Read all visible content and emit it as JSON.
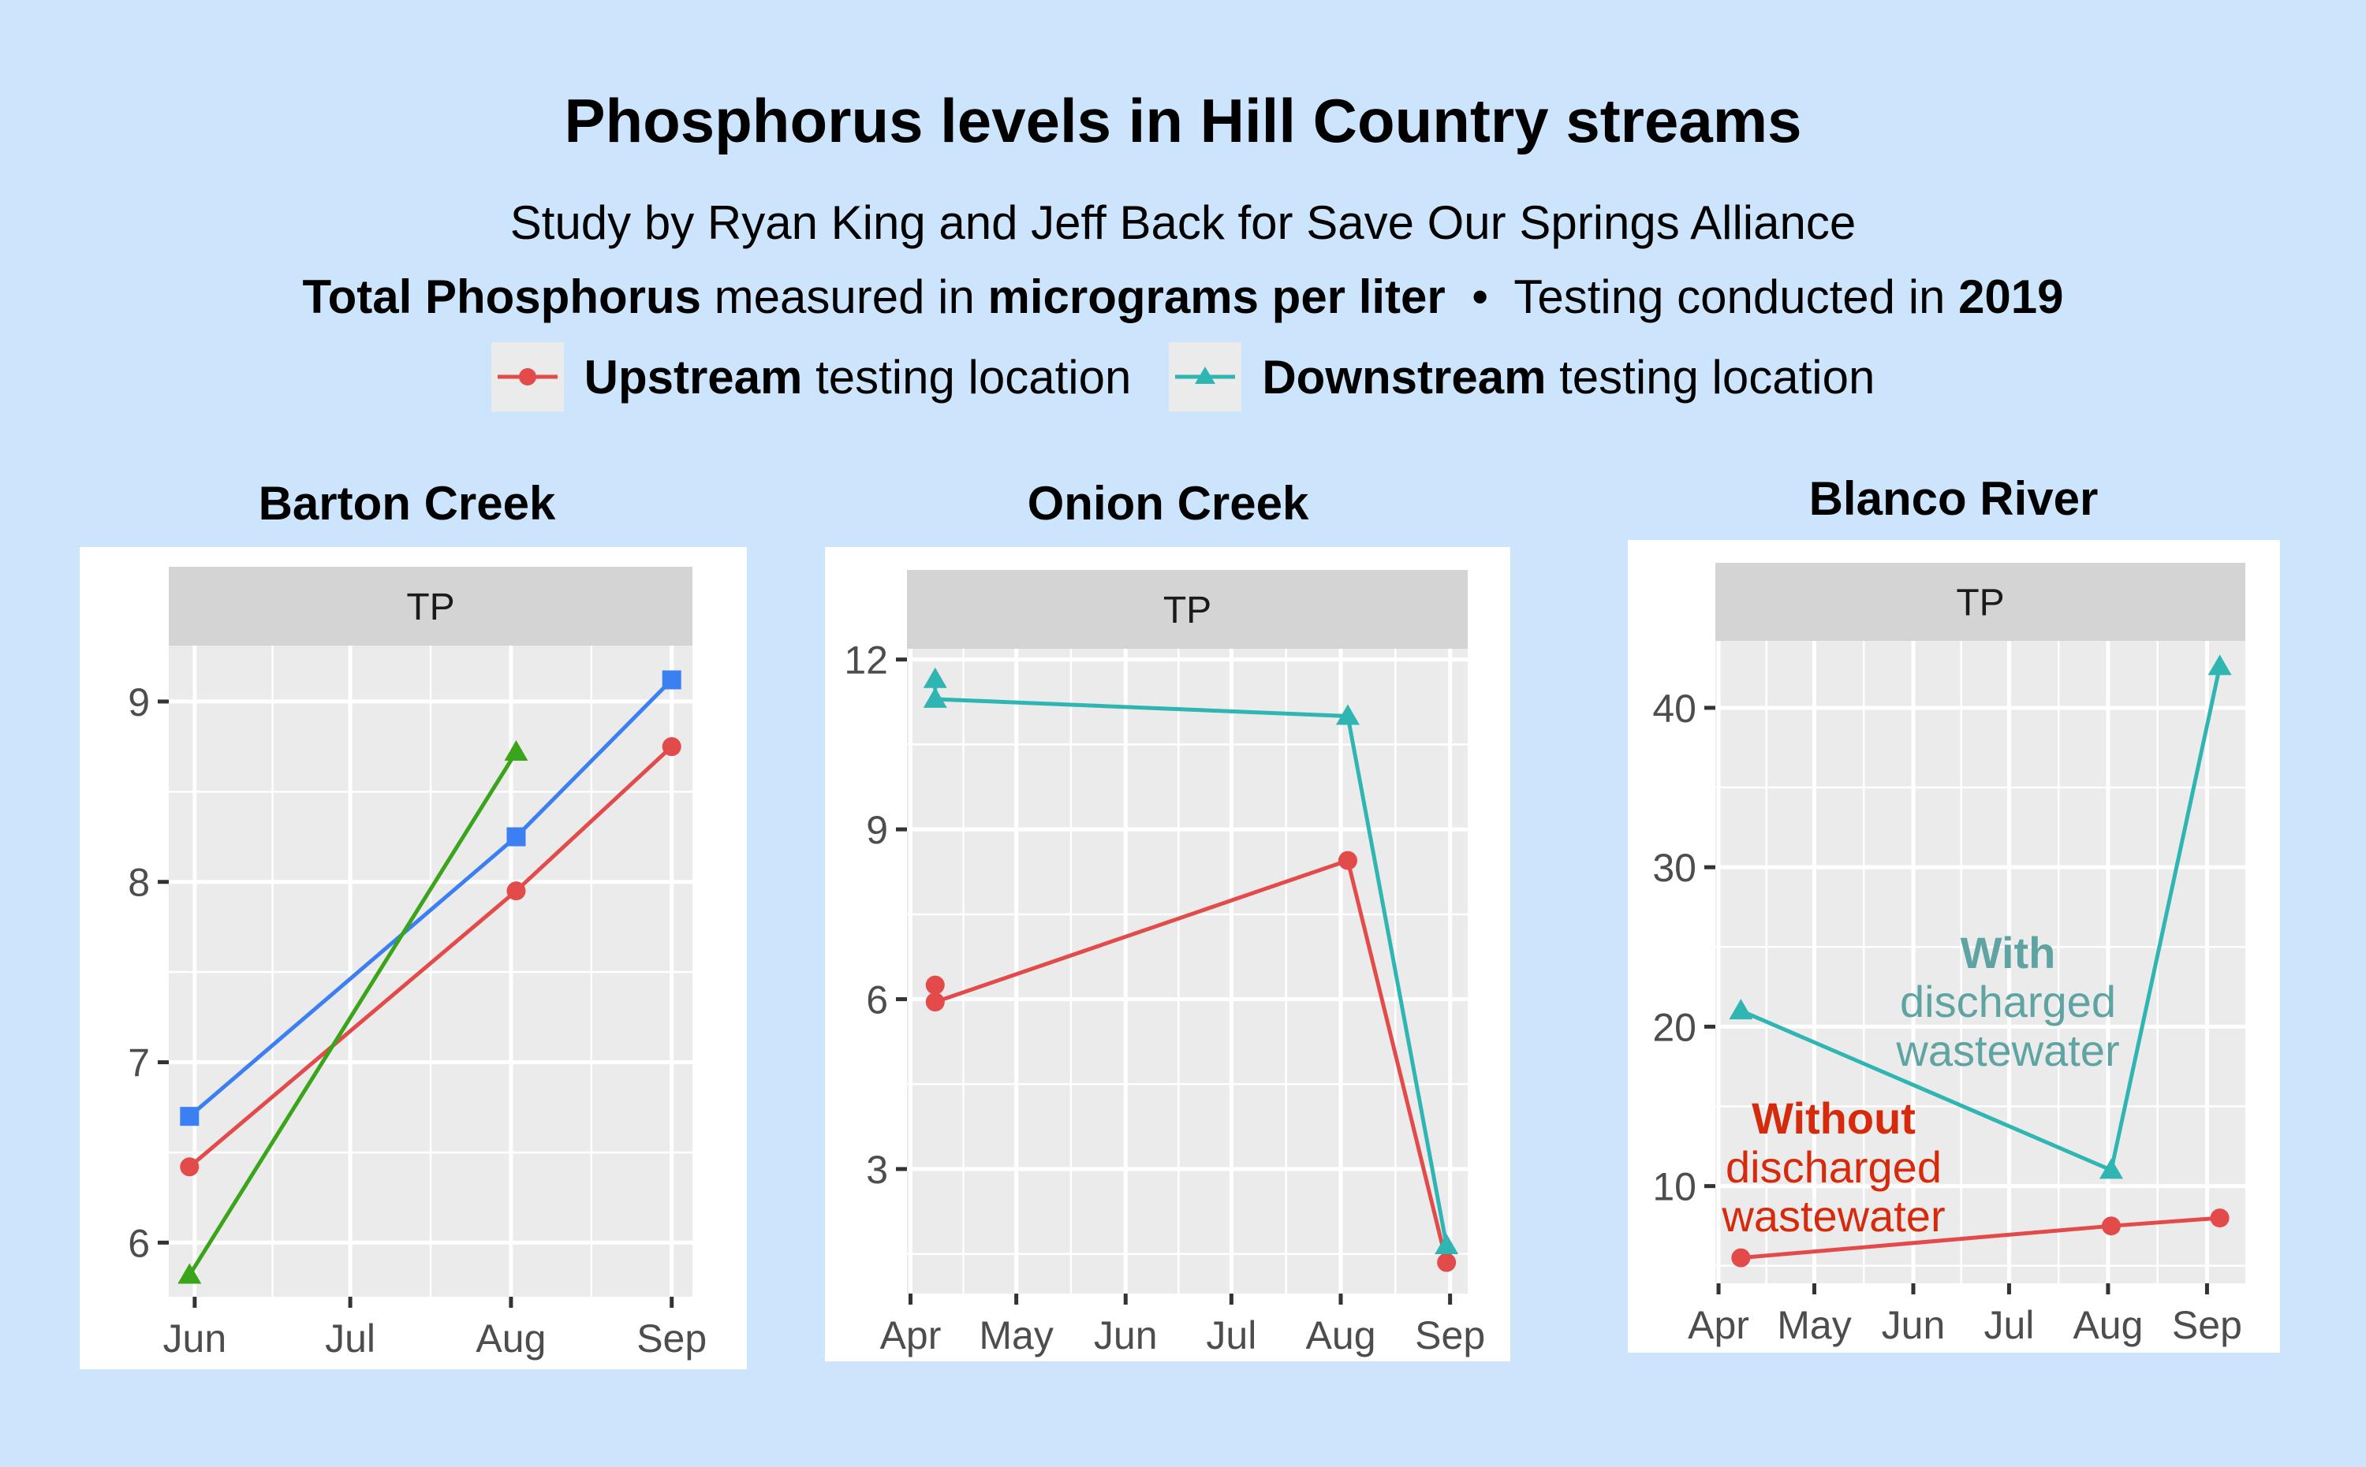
{
  "header": {
    "title": "Phosphorus levels in Hill Country streams",
    "subtitle": "Study by Ryan King and Jeff Back for Save Our Springs Alliance",
    "units_line": {
      "measure_bold": "Total Phosphorus",
      "measure_text": " measured in ",
      "unit_bold": "micrograms per liter",
      "separator": "  •  ",
      "testing_text": "Testing conducted in ",
      "year_bold": "2019"
    },
    "legend": [
      {
        "bold": "Upstream",
        "text": " testing location",
        "color": "#e34a4a",
        "marker": "circle"
      },
      {
        "bold": "Downstream",
        "text": " testing location",
        "color": "#2fb5b2",
        "marker": "triangle"
      }
    ]
  },
  "colors": {
    "background": "#cce4fc",
    "panel_bg": "#ebebeb",
    "strip_bg": "#d4d4d4",
    "upstream": "#e34a4a",
    "downstream": "#2fb5b2",
    "blue": "#3b7ff2",
    "green": "#3aa51a",
    "annot_with": "#5fa3a3",
    "annot_without": "#d62a0c"
  },
  "annotations": {
    "with_bold": "With",
    "with_line2": "discharged",
    "with_line3": "wastewater",
    "without_bold": "Without",
    "without_line2": "discharged",
    "without_line3": "wastewater"
  },
  "chart_data": [
    {
      "type": "line",
      "title": "Barton Creek",
      "strip": "TP",
      "xlabel": "",
      "ylabel": "",
      "xticks": [
        {
          "date": "2019-06-01",
          "label": "Jun"
        },
        {
          "date": "2019-07-01",
          "label": "Jul"
        },
        {
          "date": "2019-08-01",
          "label": "Aug"
        },
        {
          "date": "2019-09-01",
          "label": "Sep"
        }
      ],
      "yticks": [
        6,
        7,
        8,
        9
      ],
      "xlim": [
        "2019-05-27",
        "2019-09-05"
      ],
      "ylim": [
        5.7,
        9.31
      ],
      "grid": true,
      "series": [
        {
          "name": "Upstream",
          "color": "#e34a4a",
          "marker": "circle",
          "x": [
            "2019-05-31",
            "2019-08-02",
            "2019-09-01"
          ],
          "y": [
            6.42,
            7.95,
            8.75
          ]
        },
        {
          "color": "#3b7ff2",
          "marker": "square",
          "x": [
            "2019-05-31",
            "2019-08-02",
            "2019-09-01"
          ],
          "y": [
            6.7,
            8.25,
            9.12
          ]
        },
        {
          "color": "#3aa51a",
          "marker": "triangle",
          "x": [
            "2019-05-31",
            "2019-08-02"
          ],
          "y": [
            5.82,
            8.72
          ]
        }
      ]
    },
    {
      "type": "line",
      "title": "Onion Creek",
      "strip": "TP",
      "xlabel": "",
      "ylabel": "",
      "xticks": [
        {
          "date": "2019-04-01",
          "label": "Apr"
        },
        {
          "date": "2019-05-01",
          "label": "May"
        },
        {
          "date": "2019-06-01",
          "label": "Jun"
        },
        {
          "date": "2019-07-01",
          "label": "Jul"
        },
        {
          "date": "2019-08-01",
          "label": "Aug"
        },
        {
          "date": "2019-09-01",
          "label": "Sep"
        }
      ],
      "yticks": [
        3,
        6,
        9,
        12
      ],
      "xlim": [
        "2019-03-31",
        "2019-09-06"
      ],
      "ylim": [
        0.8,
        12.19
      ],
      "grid": true,
      "series": [
        {
          "name": "Upstream",
          "color": "#e34a4a",
          "marker": "circle",
          "x": [
            "2019-04-08",
            "2019-04-08",
            "2019-08-03",
            "2019-08-31"
          ],
          "y": [
            6.25,
            5.95,
            8.45,
            1.35
          ]
        },
        {
          "name": "Downstream",
          "color": "#2fb5b2",
          "marker": "triangle",
          "x": [
            "2019-04-08",
            "2019-04-08",
            "2019-08-03",
            "2019-08-31"
          ],
          "y": [
            11.65,
            11.3,
            11.0,
            1.65
          ]
        }
      ]
    },
    {
      "type": "line",
      "title": "Blanco River",
      "strip": "TP",
      "xlabel": "",
      "ylabel": "",
      "xticks": [
        {
          "date": "2019-04-01",
          "label": "Apr"
        },
        {
          "date": "2019-05-01",
          "label": "May"
        },
        {
          "date": "2019-06-01",
          "label": "Jun"
        },
        {
          "date": "2019-07-01",
          "label": "Jul"
        },
        {
          "date": "2019-08-01",
          "label": "Aug"
        },
        {
          "date": "2019-09-01",
          "label": "Sep"
        }
      ],
      "yticks": [
        10,
        20,
        30,
        40
      ],
      "xlim": [
        "2019-03-31",
        "2019-09-13"
      ],
      "ylim": [
        3.9,
        44.2
      ],
      "grid": true,
      "series": [
        {
          "name": "Upstream",
          "color": "#e34a4a",
          "marker": "circle",
          "x": [
            "2019-04-08",
            "2019-08-02",
            "2019-09-05"
          ],
          "y": [
            5.5,
            7.5,
            8.0
          ]
        },
        {
          "name": "Downstream",
          "color": "#2fb5b2",
          "marker": "triangle",
          "x": [
            "2019-04-08",
            "2019-08-02",
            "2019-09-05"
          ],
          "y": [
            21.0,
            11.0,
            42.6
          ]
        }
      ]
    }
  ]
}
